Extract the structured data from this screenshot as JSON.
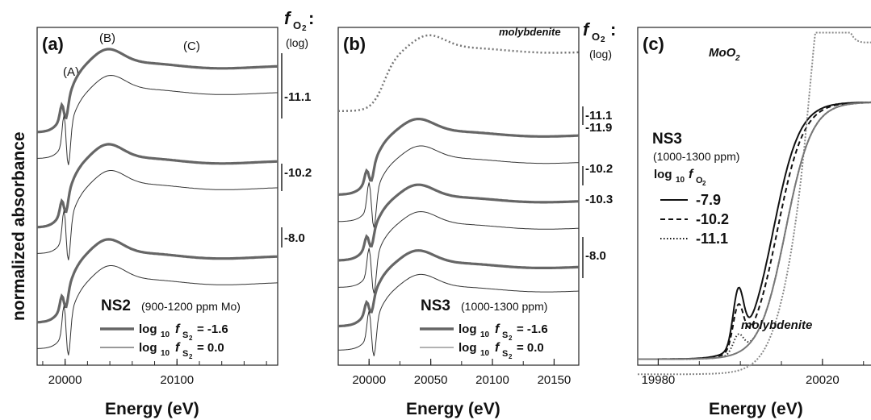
{
  "figure": {
    "ylabel": "normalized absorbance",
    "xlabel": "Energy (eV)",
    "fo2_header_a": "f",
    "fo2_header_sub": "O",
    "fo2_header_sub2": "2",
    "fo2_colon": ":",
    "fo2_log": "(log)"
  },
  "chart_data": [
    {
      "type": "line",
      "panel": "(a)",
      "xlabel": "Energy (eV)",
      "ylabel": "normalized absorbance",
      "xlim": [
        19975,
        20190
      ],
      "xticks": [
        20000,
        20100
      ],
      "feature_labels": [
        "(A)",
        "(B)",
        "(C)"
      ],
      "sample_label": "NS2",
      "sample_note": "(900-1200 ppm Mo)",
      "legend": [
        {
          "prefix": "log",
          "sub": "10",
          "var": "f",
          "varsub": "S",
          "varsub2": "2",
          "value": "= -1.6",
          "style": "thick"
        },
        {
          "prefix": "log",
          "sub": "10",
          "var": "f",
          "varsub": "S",
          "varsub2": "2",
          "value": "= 0.0",
          "style": "thin"
        }
      ],
      "fo2_groups": [
        "-11.1",
        "-10.2",
        "-8.0"
      ],
      "series": [
        {
          "group": "-11.1",
          "style": "thick",
          "offset": 3,
          "edge": 20002,
          "preedge": 0.22
        },
        {
          "group": "-11.1",
          "style": "thin",
          "offset": 2.6,
          "edge": 20004,
          "preedge": 0.55
        },
        {
          "group": "-10.2",
          "style": "thick",
          "offset": 1.55,
          "edge": 20002,
          "preedge": 0.2
        },
        {
          "group": "-10.2",
          "style": "thin",
          "offset": 1.15,
          "edge": 20004,
          "preedge": 0.55
        },
        {
          "group": "-8.0",
          "style": "thick",
          "offset": 0.1,
          "edge": 20002,
          "preedge": 0.2
        },
        {
          "group": "-8.0",
          "style": "thin",
          "offset": -0.3,
          "edge": 20004,
          "preedge": 0.55
        }
      ]
    },
    {
      "type": "line",
      "panel": "(b)",
      "xlabel": "Energy (eV)",
      "xlim": [
        19975,
        20170
      ],
      "xticks": [
        20000,
        20050,
        20100,
        20150
      ],
      "sample_label": "NS3",
      "sample_note": "(1000-1300 ppm)",
      "reference_label": "molybdenite",
      "legend": [
        {
          "prefix": "log",
          "sub": "10",
          "var": "f",
          "varsub": "S",
          "varsub2": "2",
          "value": "= -1.6",
          "style": "thick"
        },
        {
          "prefix": "log",
          "sub": "10",
          "var": "f",
          "varsub": "S",
          "varsub2": "2",
          "value": "= 0.0",
          "style": "thin"
        }
      ],
      "fo2_values": [
        "-11.1",
        "-11.9",
        "-10.2",
        "-10.3",
        "-8.0"
      ],
      "series": [
        {
          "name": "molybdenite",
          "style": "dotted",
          "offset": 3.4,
          "edge": 20012,
          "preedge": 0
        },
        {
          "group": "-11.1",
          "style": "thick",
          "offset": 2.0,
          "edge": 20003,
          "preedge": 0.2
        },
        {
          "group": "-11.9",
          "style": "thin",
          "offset": 1.55,
          "edge": 20005,
          "preedge": 0.55
        },
        {
          "group": "-10.2",
          "style": "thick",
          "offset": 0.9,
          "edge": 20003,
          "preedge": 0.2
        },
        {
          "group": "-10.3",
          "style": "thin",
          "offset": 0.45,
          "edge": 20005,
          "preedge": 0.55
        },
        {
          "group": "-8.0",
          "style": "thick",
          "offset": -0.2,
          "edge": 20003,
          "preedge": 0.2
        },
        {
          "group": "-8.0",
          "style": "thin",
          "offset": -0.6,
          "edge": 20005,
          "preedge": 0.55
        }
      ]
    },
    {
      "type": "line",
      "panel": "(c)",
      "xlabel": "Energy (eV)",
      "xlim": [
        19975,
        20033
      ],
      "xticks": [
        19980,
        20020
      ],
      "sample_label": "NS3",
      "sample_note": "(1000-1300 ppm)",
      "legend_title": {
        "prefix": "log",
        "sub": "10",
        "var": "f",
        "varsub": "O",
        "varsub2": "2"
      },
      "reference_labels": [
        "MoO",
        "molybdenite"
      ],
      "moo2_sub": "2",
      "series": [
        {
          "name": "-7.9",
          "style": "solid"
        },
        {
          "name": "-10.2",
          "style": "dashed"
        },
        {
          "name": "-11.1",
          "style": "dotted"
        },
        {
          "name": "MoO2",
          "style": "dotted-gray"
        },
        {
          "name": "molybdenite",
          "style": "solid-gray"
        }
      ]
    }
  ]
}
